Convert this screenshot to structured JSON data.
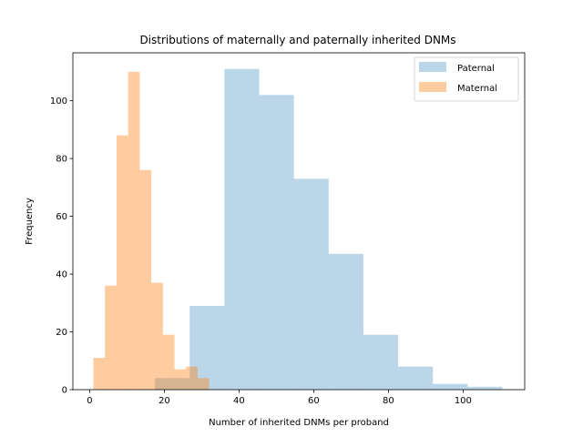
{
  "chart_data": {
    "type": "histogram",
    "title": "Distributions of maternally and paternally inherited DNMs",
    "xlabel": "Number of inherited DNMs per proband",
    "ylabel": "Frequency",
    "xlim": [
      -4.5,
      116.5
    ],
    "ylim": [
      0,
      116.6
    ],
    "xticks": [
      0,
      20,
      40,
      60,
      80,
      100
    ],
    "yticks": [
      0,
      20,
      40,
      60,
      80,
      100
    ],
    "legend_position": "top-right",
    "series": [
      {
        "name": "Paternal",
        "color": "#1f77b4",
        "alpha": 0.3,
        "bins": [
          {
            "x0": 17.5,
            "x1": 26.8,
            "count": 4
          },
          {
            "x0": 26.8,
            "x1": 36.1,
            "count": 29
          },
          {
            "x0": 36.1,
            "x1": 45.4,
            "count": 111
          },
          {
            "x0": 45.4,
            "x1": 54.7,
            "count": 102
          },
          {
            "x0": 54.7,
            "x1": 64.0,
            "count": 73
          },
          {
            "x0": 64.0,
            "x1": 73.3,
            "count": 47
          },
          {
            "x0": 73.3,
            "x1": 82.6,
            "count": 19
          },
          {
            "x0": 82.6,
            "x1": 91.9,
            "count": 8
          },
          {
            "x0": 91.9,
            "x1": 101.2,
            "count": 2
          },
          {
            "x0": 101.2,
            "x1": 110.5,
            "count": 1
          }
        ]
      },
      {
        "name": "Maternal",
        "color": "#ff7f0e",
        "alpha": 0.4,
        "bins": [
          {
            "x0": 1.0,
            "x1": 4.1,
            "count": 11
          },
          {
            "x0": 4.1,
            "x1": 7.2,
            "count": 36
          },
          {
            "x0": 7.2,
            "x1": 10.3,
            "count": 88
          },
          {
            "x0": 10.3,
            "x1": 13.4,
            "count": 110
          },
          {
            "x0": 13.4,
            "x1": 16.5,
            "count": 76
          },
          {
            "x0": 16.5,
            "x1": 19.6,
            "count": 37
          },
          {
            "x0": 19.6,
            "x1": 22.7,
            "count": 19
          },
          {
            "x0": 22.7,
            "x1": 25.8,
            "count": 7
          },
          {
            "x0": 25.8,
            "x1": 28.9,
            "count": 8
          },
          {
            "x0": 28.9,
            "x1": 32.0,
            "count": 4
          }
        ]
      }
    ]
  }
}
